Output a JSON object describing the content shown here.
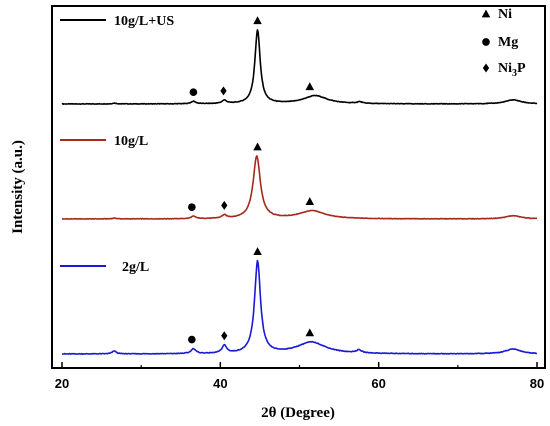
{
  "chart_data": {
    "type": "line",
    "xlabel": "2θ (Degree)",
    "ylabel": "Intensity (a.u.)",
    "xlim": [
      20,
      80
    ],
    "xticks": [
      "20",
      "40",
      "60",
      "80"
    ],
    "y_ticks_shown": false,
    "grid": false,
    "marker_legend": [
      {
        "symbol": "triangle",
        "label": "Ni"
      },
      {
        "symbol": "circle",
        "label": "Mg"
      },
      {
        "symbol": "diamond",
        "label_main": "Ni",
        "label_sub": "3",
        "label_end": "P"
      }
    ],
    "series": [
      {
        "name": "10g/L+US",
        "color": "#000000",
        "baseline": 0.0,
        "broad_hump": 0.0,
        "peaks": [
          {
            "x": 26.6,
            "h": 0.01,
            "w": 0.3
          },
          {
            "x": 36.6,
            "h": 0.03,
            "w": 0.35
          },
          {
            "x": 40.5,
            "h": 0.04,
            "w": 0.35
          },
          {
            "x": 44.7,
            "h": 0.9,
            "w": 0.4
          },
          {
            "x": 52.0,
            "h": 0.1,
            "w": 1.8
          },
          {
            "x": 57.6,
            "h": 0.02,
            "w": 0.4
          },
          {
            "x": 77.0,
            "h": 0.05,
            "w": 1.2
          }
        ],
        "markers": [
          {
            "symbol": "circle",
            "x": 36.6
          },
          {
            "symbol": "diamond",
            "x": 40.4
          },
          {
            "symbol": "triangle",
            "x": 44.7
          },
          {
            "symbol": "triangle",
            "x": 51.3
          }
        ]
      },
      {
        "name": "10g/L",
        "color": "#a52a1a",
        "baseline": 0.0,
        "broad_hump": 0.0,
        "peaks": [
          {
            "x": 26.6,
            "h": 0.01,
            "w": 0.3
          },
          {
            "x": 36.6,
            "h": 0.03,
            "w": 0.35
          },
          {
            "x": 40.5,
            "h": 0.04,
            "w": 0.35
          },
          {
            "x": 44.6,
            "h": 0.78,
            "w": 0.55
          },
          {
            "x": 51.6,
            "h": 0.1,
            "w": 2.0
          },
          {
            "x": 77.0,
            "h": 0.04,
            "w": 1.2
          }
        ],
        "markers": [
          {
            "symbol": "circle",
            "x": 36.4
          },
          {
            "symbol": "diamond",
            "x": 40.5
          },
          {
            "symbol": "triangle",
            "x": 44.7
          },
          {
            "symbol": "triangle",
            "x": 51.3
          }
        ]
      },
      {
        "name": "2g/L",
        "color": "#1a1ad6",
        "baseline": 0.0,
        "broad_hump": 0.0,
        "peaks": [
          {
            "x": 26.6,
            "h": 0.03,
            "w": 0.3
          },
          {
            "x": 36.6,
            "h": 0.05,
            "w": 0.35
          },
          {
            "x": 40.5,
            "h": 0.08,
            "w": 0.35
          },
          {
            "x": 44.7,
            "h": 0.95,
            "w": 0.45
          },
          {
            "x": 51.5,
            "h": 0.12,
            "w": 2.2
          },
          {
            "x": 57.5,
            "h": 0.03,
            "w": 0.4
          },
          {
            "x": 77.0,
            "h": 0.05,
            "w": 1.2
          }
        ],
        "markers": [
          {
            "symbol": "circle",
            "x": 36.4
          },
          {
            "symbol": "diamond",
            "x": 40.5
          },
          {
            "symbol": "triangle",
            "x": 44.7
          },
          {
            "symbol": "triangle",
            "x": 51.3
          }
        ]
      }
    ]
  }
}
